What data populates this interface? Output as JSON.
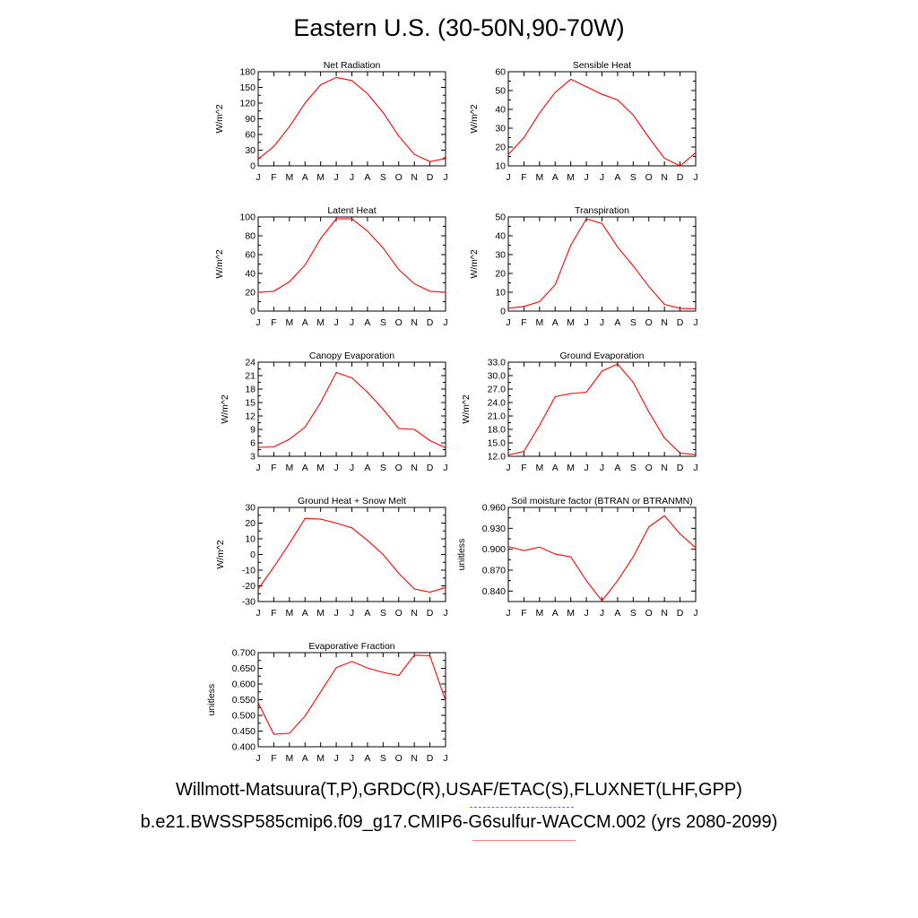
{
  "title": "Eastern U.S. (30-50N,90-70W)",
  "captions": {
    "obs": "Willmott-Matsuura(T,P),GRDC(R),USAF/ETAC(S),FLUXNET(LHF,GPP)",
    "case": "b.e21.BWSSP585cmip6.f09_g17.CMIP6-G6sulfur-WACCM.002 (yrs 2080-2099)"
  },
  "colors": {
    "series": "#ff0000",
    "obs_legend": "#6a6aee",
    "case_legend": "#ff8080"
  },
  "months": [
    "J",
    "F",
    "M",
    "A",
    "M",
    "J",
    "J",
    "A",
    "S",
    "O",
    "N",
    "D",
    "J"
  ],
  "chart_data": [
    {
      "type": "line",
      "title": "Net Radiation",
      "ylabel": "W/m^2",
      "ylim": [
        0,
        180
      ],
      "yticks": [
        "0",
        "30",
        "60",
        "90",
        "120",
        "150",
        "180"
      ],
      "values": [
        13,
        37,
        75,
        120,
        155,
        169,
        163,
        138,
        102,
        57,
        22,
        8,
        14
      ]
    },
    {
      "type": "line",
      "title": "Sensible Heat",
      "ylabel": "W/m^2",
      "ylim": [
        10,
        60
      ],
      "yticks": [
        "10",
        "20",
        "30",
        "40",
        "50",
        "60"
      ],
      "values": [
        16,
        25,
        38,
        49,
        56,
        52,
        48,
        45,
        37,
        25,
        14,
        10,
        17
      ]
    },
    {
      "type": "line",
      "title": "Latent Heat",
      "ylabel": "W/m^2",
      "ylim": [
        0,
        100
      ],
      "yticks": [
        "0",
        "20",
        "40",
        "60",
        "80",
        "100"
      ],
      "values": [
        20,
        21,
        31,
        49,
        77,
        98,
        98,
        85,
        67,
        44,
        29,
        21,
        20
      ]
    },
    {
      "type": "line",
      "title": "Transpiration",
      "ylabel": "W/m^2",
      "ylim": [
        0,
        50
      ],
      "yticks": [
        "0",
        "10",
        "20",
        "30",
        "40",
        "50"
      ],
      "values": [
        1.5,
        2.5,
        5,
        14,
        35,
        49,
        46.5,
        34,
        24,
        13,
        3.5,
        1.5,
        1.2
      ]
    },
    {
      "type": "line",
      "title": "Canopy Evaporation",
      "ylabel": "W/m^2",
      "ylim": [
        3,
        24
      ],
      "yticks": [
        "3",
        "6",
        "9",
        "12",
        "15",
        "18",
        "21",
        "24"
      ],
      "values": [
        5,
        5.1,
        6.8,
        9.5,
        15,
        21.7,
        20.5,
        17.3,
        13.5,
        9.2,
        9,
        6.5,
        4.9
      ]
    },
    {
      "type": "line",
      "title": "Ground Evaporation",
      "ylabel": "W/m^2",
      "ylim": [
        12,
        33
      ],
      "yticks": [
        "12.0",
        "15.0",
        "18.0",
        "21.0",
        "24.0",
        "27.0",
        "30.0",
        "33.0"
      ],
      "values": [
        12.3,
        13.1,
        18.9,
        25.3,
        26,
        26.3,
        31,
        32.6,
        28.5,
        21.9,
        16.1,
        12.7,
        12.4
      ]
    },
    {
      "type": "line",
      "title": "Ground Heat + Snow Melt",
      "ylabel": "W/m^2",
      "ylim": [
        -30,
        30
      ],
      "yticks": [
        "-30",
        "-20",
        "-10",
        "0",
        "10",
        "20",
        "30"
      ],
      "values": [
        -22,
        -8,
        7,
        23,
        22.5,
        20,
        17,
        9,
        0,
        -12,
        -22,
        -24,
        -21
      ]
    },
    {
      "type": "line",
      "title": "Soil moisture factor (BTRAN or BTRANMN)",
      "ylabel": "unitless",
      "ylim": [
        0.825,
        0.96
      ],
      "yticks": [
        "0.840",
        "0.870",
        "0.900",
        "0.930",
        "0.960"
      ],
      "ytick_values": [
        0.84,
        0.87,
        0.9,
        0.93,
        0.96
      ],
      "values": [
        0.904,
        0.898,
        0.903,
        0.893,
        0.889,
        0.855,
        0.826,
        0.855,
        0.889,
        0.932,
        0.948,
        0.922,
        0.902
      ]
    },
    {
      "type": "line",
      "title": "Evaporative Fraction",
      "ylabel": "unitless",
      "ylim": [
        0.4,
        0.7
      ],
      "yticks": [
        "0.400",
        "0.450",
        "0.500",
        "0.550",
        "0.600",
        "0.650",
        "0.700"
      ],
      "values": [
        0.54,
        0.44,
        0.443,
        0.498,
        0.575,
        0.652,
        0.672,
        0.651,
        0.637,
        0.627,
        0.692,
        0.69,
        0.547
      ]
    }
  ]
}
